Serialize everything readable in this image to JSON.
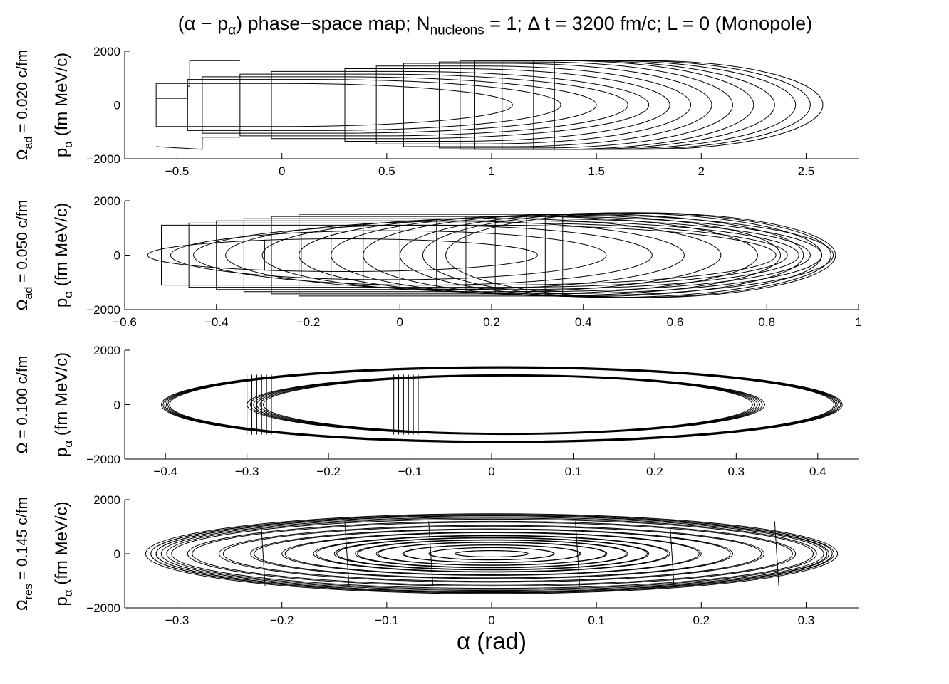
{
  "title": {
    "open": "(α − p",
    "sub1": "α",
    "mid": ") phase−space map; N",
    "sub2": "nucleons",
    "rest": " = 1; Δ t = 3200 fm/c; L = 0 (Monopole)"
  },
  "xlabel": "α (rad)",
  "chart_data": [
    {
      "type": "line",
      "omega_label": {
        "main": "Ω",
        "sub": "ad",
        "rest": " = 0.020 c/fm"
      },
      "ylabel": {
        "main": "p",
        "sub": "α",
        "rest": "  (fm MeV/c)"
      },
      "xlim": [
        -0.75,
        2.75
      ],
      "ylim": [
        -2000,
        2000
      ],
      "xticks": [
        -0.5,
        0,
        0.5,
        1,
        1.5,
        2,
        2.5
      ],
      "xticklabels": [
        "−0.5",
        "0",
        "0.5",
        "1",
        "1.5",
        "2",
        "2.5"
      ],
      "yticks": [
        -2000,
        0,
        2000
      ],
      "yticklabels": [
        "−2000",
        "0",
        "2000"
      ],
      "grid": false,
      "trajectory": {
        "description": "many concentric half-ellipse orbits with step jumps",
        "right_extents": [
          1.1,
          1.33,
          1.5,
          1.65,
          1.75,
          1.85,
          1.95,
          2.05,
          2.15,
          2.25,
          2.35,
          2.45,
          2.52,
          2.58
        ],
        "left_extents": [
          -0.6,
          -0.45,
          -0.38,
          -0.2,
          -0.05,
          0.3,
          0.45,
          0.58,
          0.75,
          0.85,
          0.92,
          1.05,
          1.2,
          1.3
        ],
        "p_peak": [
          800,
          950,
          1050,
          1150,
          1250,
          1350,
          1450,
          1550,
          1600,
          1650,
          1650,
          1650,
          1650,
          1650
        ]
      }
    },
    {
      "type": "line",
      "omega_label": {
        "main": "Ω",
        "sub": "ad",
        "rest": " = 0.050 c/fm"
      },
      "ylabel": {
        "main": "p",
        "sub": "α",
        "rest": "  (fm MeV/c)"
      },
      "xlim": [
        -0.6,
        1.0
      ],
      "ylim": [
        -2000,
        2000
      ],
      "xticks": [
        -0.6,
        -0.4,
        -0.2,
        0,
        0.2,
        0.4,
        0.6,
        0.8,
        1
      ],
      "xticklabels": [
        "−0.6",
        "−0.4",
        "−0.2",
        "0",
        "0.2",
        "0.4",
        "0.6",
        "0.8",
        "1"
      ],
      "yticks": [
        -2000,
        0,
        2000
      ],
      "yticklabels": [
        "−2000",
        "0",
        "2000"
      ],
      "grid": false,
      "trajectory": {
        "description": "nested ellipses centered near alpha = 0",
        "right_extents": [
          0.3,
          0.45,
          0.55,
          0.62,
          0.7,
          0.78,
          0.83,
          0.88,
          0.92,
          0.94,
          0.95
        ],
        "left_extents": [
          -0.55,
          -0.5,
          -0.45,
          -0.38,
          -0.3,
          -0.22,
          -0.15,
          -0.08,
          0.0,
          0.05,
          0.1
        ],
        "p_peak": [
          600,
          900,
          1100,
          1250,
          1350,
          1420,
          1480,
          1520,
          1550,
          1560,
          1560
        ]
      }
    },
    {
      "type": "line",
      "omega_label": {
        "main": "Ω",
        "sub": "",
        "rest": " = 0.100 c/fm"
      },
      "ylabel": {
        "main": "p",
        "sub": "α",
        "rest": "  (fm MeV/c)"
      },
      "xlim": [
        -0.45,
        0.45
      ],
      "ylim": [
        -2000,
        2000
      ],
      "xticks": [
        -0.4,
        -0.3,
        -0.2,
        -0.1,
        0,
        0.1,
        0.2,
        0.3,
        0.4
      ],
      "xticklabels": [
        "−0.4",
        "−0.3",
        "−0.2",
        "−0.1",
        "0",
        "0.1",
        "0.2",
        "0.3",
        "0.4"
      ],
      "yticks": [
        -2000,
        0,
        2000
      ],
      "yticklabels": [
        "−2000",
        "0",
        "2000"
      ],
      "grid": false,
      "trajectory": {
        "description": "two bands of closed orbits",
        "outer_band": {
          "left": -0.405,
          "right": 0.43,
          "p_peak": 1400
        },
        "inner_band": {
          "left": -0.3,
          "right": 0.335,
          "p_peak": 1100
        },
        "jump_regions": [
          -0.3,
          -0.12
        ]
      }
    },
    {
      "type": "line",
      "omega_label": {
        "main": "Ω",
        "sub": "res",
        "rest": " = 0.145 c/fm"
      },
      "ylabel": {
        "main": "p",
        "sub": "α",
        "rest": "  (fm MeV/c)"
      },
      "xlim": [
        -0.35,
        0.35
      ],
      "ylim": [
        -2000,
        2000
      ],
      "xticks": [
        -0.3,
        -0.2,
        -0.1,
        0,
        0.1,
        0.2,
        0.3
      ],
      "xticklabels": [
        "−0.3",
        "−0.2",
        "−0.1",
        "0",
        "0.1",
        "0.2",
        "0.3"
      ],
      "yticks": [
        -2000,
        0,
        2000
      ],
      "yticklabels": [
        "−2000",
        "0",
        "2000"
      ],
      "grid": false,
      "trajectory": {
        "description": "nested ellipses centered at origin (resonant growth)",
        "amplitudes": [
          0.035,
          0.06,
          0.085,
          0.11,
          0.13,
          0.15,
          0.17,
          0.2,
          0.23,
          0.26,
          0.29,
          0.31,
          0.32,
          0.325,
          0.33
        ],
        "p_peak": [
          120,
          230,
          330,
          430,
          520,
          600,
          680,
          800,
          920,
          1050,
          1200,
          1320,
          1400,
          1450,
          1480
        ]
      }
    }
  ]
}
